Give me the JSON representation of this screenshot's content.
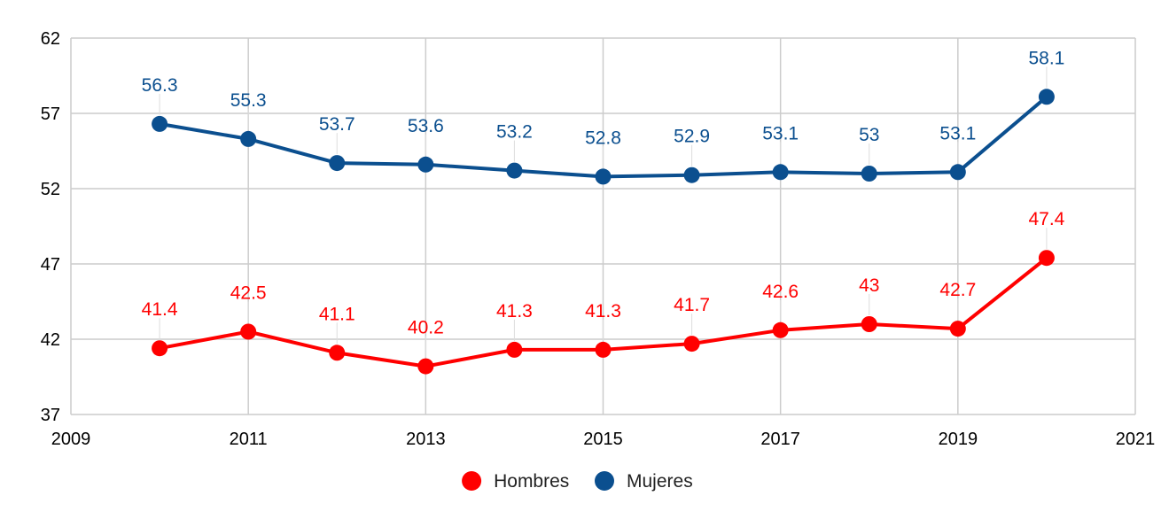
{
  "chart_data": {
    "type": "line",
    "title": "",
    "xlabel": "",
    "ylabel": "",
    "x": [
      2010,
      2011,
      2012,
      2013,
      2014,
      2015,
      2016,
      2017,
      2018,
      2019,
      2020
    ],
    "xlim": [
      2009,
      2021
    ],
    "ylim": [
      37,
      62
    ],
    "x_ticks": [
      "2009",
      "2011",
      "2013",
      "2015",
      "2017",
      "2019",
      "2021"
    ],
    "y_ticks": [
      "37",
      "42",
      "47",
      "52",
      "57",
      "62"
    ],
    "grid": true,
    "legend_position": "bottom",
    "series": [
      {
        "name": "Hombres",
        "color": "#ff0000",
        "values": [
          41.4,
          42.5,
          41.1,
          40.2,
          41.3,
          41.3,
          41.7,
          42.6,
          43,
          42.7,
          47.4
        ],
        "labels": [
          "41.4",
          "42.5",
          "41.1",
          "40.2",
          "41.3",
          "41.3",
          "41.7",
          "42.6",
          "43",
          "42.7",
          "47.4"
        ]
      },
      {
        "name": "Mujeres",
        "color": "#0b4f8f",
        "values": [
          56.3,
          55.3,
          53.7,
          53.6,
          53.2,
          52.8,
          52.9,
          53.1,
          53,
          53.1,
          58.1
        ],
        "labels": [
          "56.3",
          "55.3",
          "53.7",
          "53.6",
          "53.2",
          "52.8",
          "52.9",
          "53.1",
          "53",
          "53.1",
          "58.1"
        ]
      }
    ]
  }
}
